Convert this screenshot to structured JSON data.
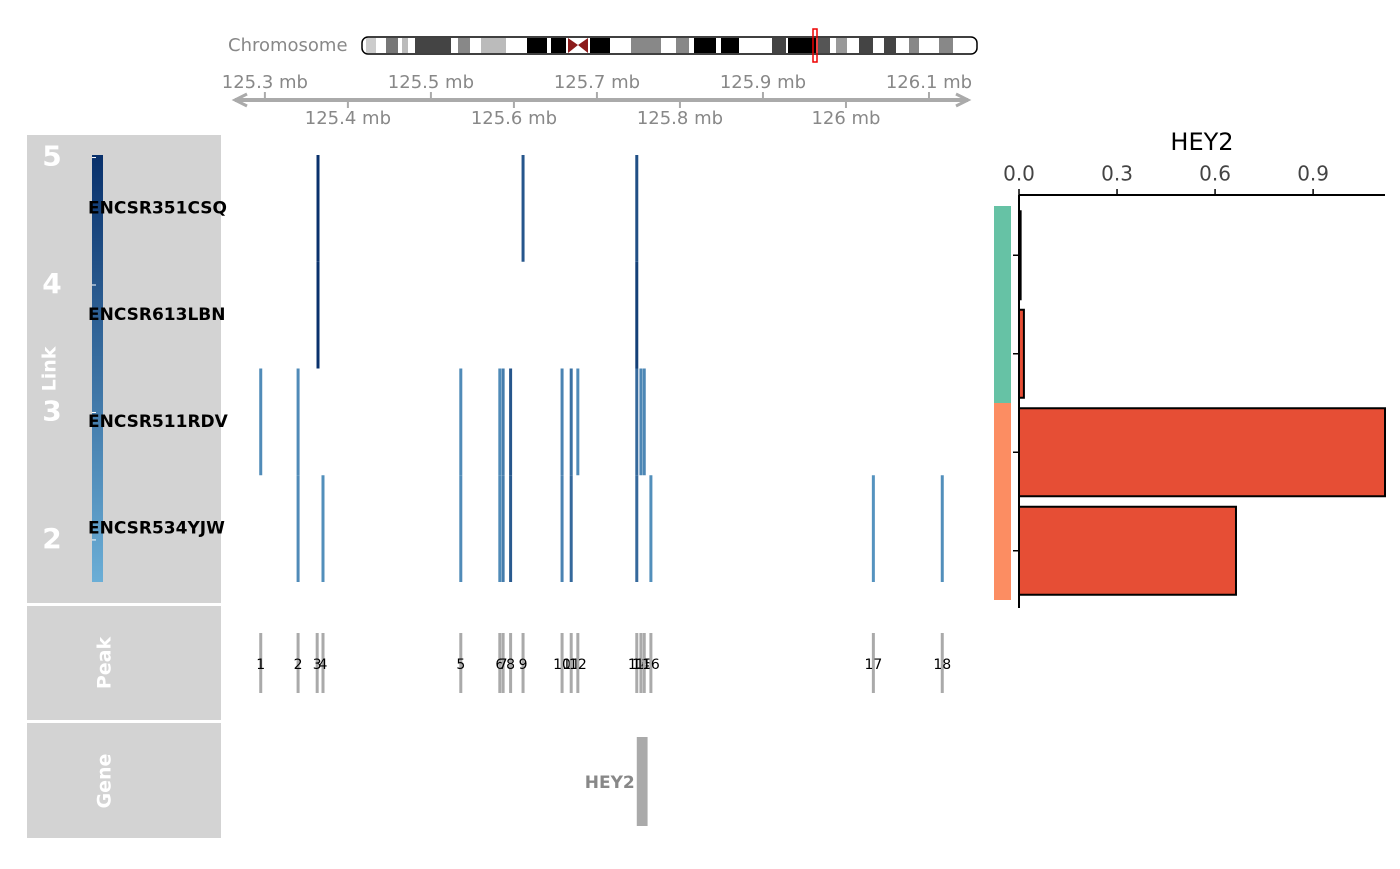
{
  "ideogram_label": "Chromosome",
  "genome_axis": {
    "xlim": [
      125.264,
      126.147
    ],
    "ticks_top": [
      {
        "value": 125.3,
        "label": "125.3 mb"
      },
      {
        "value": 125.5,
        "label": "125.5 mb"
      },
      {
        "value": 125.7,
        "label": "125.7 mb"
      },
      {
        "value": 125.9,
        "label": "125.9 mb"
      },
      {
        "value": 126.1,
        "label": "126.1 mb"
      }
    ],
    "ticks_bottom": [
      {
        "value": 125.4,
        "label": "125.4 mb"
      },
      {
        "value": 125.6,
        "label": "125.6 mb"
      },
      {
        "value": 125.8,
        "label": "125.8 mb"
      },
      {
        "value": 126,
        "label": "126 mb"
      }
    ]
  },
  "link_track": {
    "title": "Link",
    "samples": [
      "ENCSR351CSQ",
      "ENCSR613LBN",
      "ENCSR511RDV",
      "ENCSR534YJW"
    ],
    "clim": [
      1.67,
      5.02
    ],
    "cticks": [
      2,
      3,
      4,
      5
    ],
    "colors": [
      "#6baed6",
      "#08306b"
    ],
    "links": [
      {
        "sample": 0,
        "x": 125.364,
        "score": 5
      },
      {
        "sample": 0,
        "x": 125.611,
        "score": 4
      },
      {
        "sample": 0,
        "x": 125.748,
        "score": 4.2
      },
      {
        "sample": 1,
        "x": 125.364,
        "score": 5
      },
      {
        "sample": 1,
        "x": 125.748,
        "score": 4.6
      },
      {
        "sample": 2,
        "x": 125.295,
        "score": 2.6
      },
      {
        "sample": 2,
        "x": 125.34,
        "score": 2.6
      },
      {
        "sample": 2,
        "x": 125.536,
        "score": 2.6
      },
      {
        "sample": 2,
        "x": 125.583,
        "score": 2.6
      },
      {
        "sample": 2,
        "x": 125.587,
        "score": 3
      },
      {
        "sample": 2,
        "x": 125.596,
        "score": 4
      },
      {
        "sample": 2,
        "x": 125.658,
        "score": 2.8
      },
      {
        "sample": 2,
        "x": 125.669,
        "score": 3.3
      },
      {
        "sample": 2,
        "x": 125.677,
        "score": 2.6
      },
      {
        "sample": 2,
        "x": 125.748,
        "score": 3.5
      },
      {
        "sample": 2,
        "x": 125.753,
        "score": 2.7
      },
      {
        "sample": 2,
        "x": 125.757,
        "score": 2.7
      },
      {
        "sample": 3,
        "x": 125.34,
        "score": 2.6
      },
      {
        "sample": 3,
        "x": 125.37,
        "score": 2.5
      },
      {
        "sample": 3,
        "x": 125.536,
        "score": 2.6
      },
      {
        "sample": 3,
        "x": 125.583,
        "score": 2.6
      },
      {
        "sample": 3,
        "x": 125.587,
        "score": 3
      },
      {
        "sample": 3,
        "x": 125.596,
        "score": 3.9
      },
      {
        "sample": 3,
        "x": 125.658,
        "score": 2.8
      },
      {
        "sample": 3,
        "x": 125.669,
        "score": 3.5
      },
      {
        "sample": 3,
        "x": 125.748,
        "score": 3.5
      },
      {
        "sample": 3,
        "x": 125.765,
        "score": 2.5
      },
      {
        "sample": 3,
        "x": 126.033,
        "score": 2.4
      },
      {
        "sample": 3,
        "x": 126.116,
        "score": 2.5
      }
    ]
  },
  "peak_track": {
    "title": "Peak",
    "peaks": [
      {
        "label": "1",
        "x": 125.295
      },
      {
        "label": "2",
        "x": 125.34
      },
      {
        "label": "3",
        "x": 125.363
      },
      {
        "label": "4",
        "x": 125.37
      },
      {
        "label": "5",
        "x": 125.536
      },
      {
        "label": "6",
        "x": 125.583
      },
      {
        "label": "7",
        "x": 125.587
      },
      {
        "label": "8",
        "x": 125.596
      },
      {
        "label": "9",
        "x": 125.611
      },
      {
        "label": "10",
        "x": 125.658
      },
      {
        "label": "11",
        "x": 125.669
      },
      {
        "label": "12",
        "x": 125.677
      },
      {
        "label": "13",
        "x": 125.748
      },
      {
        "label": "14",
        "x": 125.753
      },
      {
        "label": "15",
        "x": 125.757
      },
      {
        "label": "16",
        "x": 125.765
      },
      {
        "label": "17",
        "x": 126.033
      },
      {
        "label": "18",
        "x": 126.116
      }
    ]
  },
  "gene_track": {
    "title": "Gene",
    "genes": [
      {
        "label": "HEY2",
        "start": 125.748,
        "end": 125.761
      }
    ]
  },
  "chart_data": {
    "type": "bar",
    "title": "HEY2",
    "categories": [
      null,
      null,
      null,
      null
    ],
    "values": [
      0.005,
      0.015,
      1.12,
      0.664
    ],
    "bar_colors": [
      "#e64e35",
      "#e64e35",
      "#e64e35",
      "#e64e35"
    ],
    "group_colors": [
      "#66c2a5",
      "#66c2a5",
      "#fc8d62",
      "#fc8d62"
    ],
    "xlim": [
      0,
      1.12
    ],
    "xticks": [
      {
        "value": 0,
        "label": "0.0"
      },
      {
        "value": 0.3,
        "label": "0.3"
      },
      {
        "value": 0.6,
        "label": "0.6"
      },
      {
        "value": 0.9,
        "label": "0.9"
      }
    ]
  }
}
